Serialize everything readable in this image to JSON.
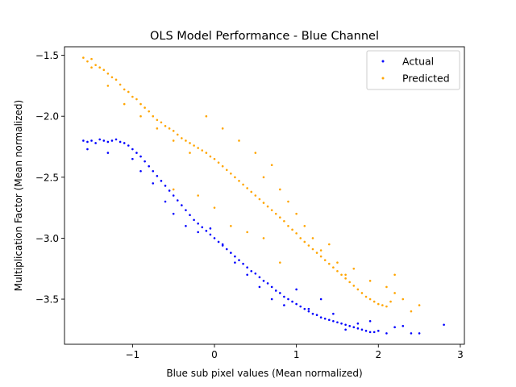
{
  "chart_data": {
    "type": "scatter",
    "title": "OLS Model Performance - Blue Channel",
    "xlabel": "Blue sub pixel values (Mean normalized)",
    "ylabel": "Multiplication Factor (Mean normalized)",
    "xlim": [
      -1.83,
      3.05
    ],
    "ylim": [
      -3.87,
      -1.43
    ],
    "xticks": [
      -1,
      0,
      1,
      2,
      3
    ],
    "xtick_labels": [
      "−1",
      "0",
      "1",
      "2",
      "3"
    ],
    "yticks": [
      -3.5,
      -3.0,
      -2.5,
      -2.0,
      -1.5
    ],
    "ytick_labels": [
      "−3.5",
      "−3.0",
      "−2.5",
      "−2.0",
      "−1.5"
    ],
    "grid": false,
    "legend_position": "top-right",
    "series": [
      {
        "name": "Actual",
        "color": "#0000ff",
        "x": [
          -1.6,
          -1.55,
          -1.5,
          -1.45,
          -1.4,
          -1.35,
          -1.3,
          -1.25,
          -1.2,
          -1.15,
          -1.1,
          -1.05,
          -1.0,
          -0.95,
          -0.9,
          -0.85,
          -0.8,
          -0.75,
          -0.7,
          -0.65,
          -0.6,
          -0.55,
          -0.5,
          -0.45,
          -0.4,
          -0.35,
          -0.3,
          -0.25,
          -0.2,
          -0.15,
          -0.1,
          -0.05,
          0.0,
          0.05,
          0.1,
          0.15,
          0.2,
          0.25,
          0.3,
          0.35,
          0.4,
          0.45,
          0.5,
          0.55,
          0.6,
          0.65,
          0.7,
          0.75,
          0.8,
          0.85,
          0.9,
          0.95,
          1.0,
          1.05,
          1.1,
          1.15,
          1.2,
          1.25,
          1.3,
          1.35,
          1.4,
          1.45,
          1.5,
          1.55,
          1.6,
          1.65,
          1.7,
          1.75,
          1.8,
          1.85,
          1.9,
          1.95,
          2.0,
          2.1,
          2.2,
          2.3,
          2.4,
          2.5,
          2.8,
          -1.55,
          -1.3,
          -1.0,
          -0.9,
          -0.75,
          -0.6,
          -0.5,
          -0.35,
          -0.2,
          -0.05,
          0.1,
          0.25,
          0.4,
          0.55,
          0.7,
          0.85,
          1.0,
          1.15,
          1.3,
          1.45,
          1.6,
          1.75,
          1.9
        ],
        "y": [
          -2.2,
          -2.21,
          -2.2,
          -2.22,
          -2.19,
          -2.2,
          -2.21,
          -2.2,
          -2.19,
          -2.21,
          -2.22,
          -2.24,
          -2.27,
          -2.3,
          -2.33,
          -2.37,
          -2.41,
          -2.45,
          -2.49,
          -2.53,
          -2.57,
          -2.61,
          -2.65,
          -2.69,
          -2.73,
          -2.77,
          -2.81,
          -2.85,
          -2.88,
          -2.91,
          -2.94,
          -2.97,
          -3.0,
          -3.03,
          -3.06,
          -3.09,
          -3.12,
          -3.15,
          -3.18,
          -3.21,
          -3.24,
          -3.27,
          -3.29,
          -3.32,
          -3.35,
          -3.37,
          -3.4,
          -3.43,
          -3.45,
          -3.48,
          -3.5,
          -3.52,
          -3.54,
          -3.56,
          -3.58,
          -3.6,
          -3.62,
          -3.63,
          -3.65,
          -3.66,
          -3.67,
          -3.68,
          -3.69,
          -3.7,
          -3.71,
          -3.72,
          -3.73,
          -3.74,
          -3.75,
          -3.76,
          -3.77,
          -3.77,
          -3.76,
          -3.78,
          -3.73,
          -3.72,
          -3.78,
          -3.78,
          -3.71,
          -2.27,
          -2.3,
          -2.35,
          -2.45,
          -2.55,
          -2.7,
          -2.8,
          -2.9,
          -2.95,
          -2.92,
          -3.05,
          -3.2,
          -3.3,
          -3.4,
          -3.5,
          -3.55,
          -3.42,
          -3.58,
          -3.5,
          -3.62,
          -3.75,
          -3.7,
          -3.68
        ]
      },
      {
        "name": "Predicted",
        "color": "#ffa500",
        "x": [
          -1.6,
          -1.55,
          -1.5,
          -1.45,
          -1.4,
          -1.35,
          -1.3,
          -1.25,
          -1.2,
          -1.15,
          -1.1,
          -1.05,
          -1.0,
          -0.95,
          -0.9,
          -0.85,
          -0.8,
          -0.75,
          -0.7,
          -0.65,
          -0.6,
          -0.55,
          -0.5,
          -0.45,
          -0.4,
          -0.35,
          -0.3,
          -0.25,
          -0.2,
          -0.15,
          -0.1,
          -0.05,
          0.0,
          0.05,
          0.1,
          0.15,
          0.2,
          0.25,
          0.3,
          0.35,
          0.4,
          0.45,
          0.5,
          0.55,
          0.6,
          0.65,
          0.7,
          0.75,
          0.8,
          0.85,
          0.9,
          0.95,
          1.0,
          1.05,
          1.1,
          1.15,
          1.2,
          1.25,
          1.3,
          1.35,
          1.4,
          1.45,
          1.5,
          1.55,
          1.6,
          1.65,
          1.7,
          1.75,
          1.8,
          1.85,
          1.9,
          1.95,
          2.0,
          2.05,
          2.1,
          2.15,
          2.2,
          2.3,
          2.4,
          2.5,
          -1.5,
          -1.3,
          -1.1,
          -0.9,
          -0.7,
          -0.5,
          -0.3,
          -0.1,
          0.1,
          0.3,
          0.5,
          0.6,
          0.7,
          0.8,
          0.9,
          1.0,
          1.1,
          1.2,
          1.3,
          1.4,
          1.5,
          1.6,
          1.7,
          1.9,
          2.1,
          2.2,
          -0.5,
          -0.2,
          0.0,
          0.2,
          0.4,
          0.6,
          0.8
        ],
        "y": [
          -1.52,
          -1.55,
          -1.53,
          -1.58,
          -1.6,
          -1.62,
          -1.65,
          -1.68,
          -1.7,
          -1.74,
          -1.78,
          -1.8,
          -1.84,
          -1.86,
          -1.9,
          -1.93,
          -1.96,
          -2.0,
          -2.03,
          -2.05,
          -2.08,
          -2.1,
          -2.12,
          -2.15,
          -2.18,
          -2.2,
          -2.22,
          -2.24,
          -2.26,
          -2.28,
          -2.3,
          -2.33,
          -2.35,
          -2.38,
          -2.41,
          -2.44,
          -2.47,
          -2.5,
          -2.53,
          -2.56,
          -2.59,
          -2.62,
          -2.65,
          -2.68,
          -2.71,
          -2.74,
          -2.77,
          -2.8,
          -2.83,
          -2.86,
          -2.9,
          -2.93,
          -2.96,
          -3.0,
          -3.03,
          -3.06,
          -3.09,
          -3.12,
          -3.15,
          -3.18,
          -3.21,
          -3.24,
          -3.27,
          -3.3,
          -3.33,
          -3.36,
          -3.39,
          -3.42,
          -3.45,
          -3.48,
          -3.5,
          -3.52,
          -3.54,
          -3.55,
          -3.56,
          -3.52,
          -3.45,
          -3.5,
          -3.6,
          -3.55,
          -1.6,
          -1.75,
          -1.9,
          -2.0,
          -2.1,
          -2.2,
          -2.3,
          -2.0,
          -2.1,
          -2.2,
          -2.3,
          -2.5,
          -2.4,
          -2.6,
          -2.7,
          -2.8,
          -2.9,
          -3.0,
          -3.1,
          -3.05,
          -3.2,
          -3.3,
          -3.25,
          -3.35,
          -3.4,
          -3.3,
          -2.6,
          -2.65,
          -2.75,
          -2.9,
          -2.95,
          -3.0,
          -3.2
        ]
      }
    ]
  }
}
